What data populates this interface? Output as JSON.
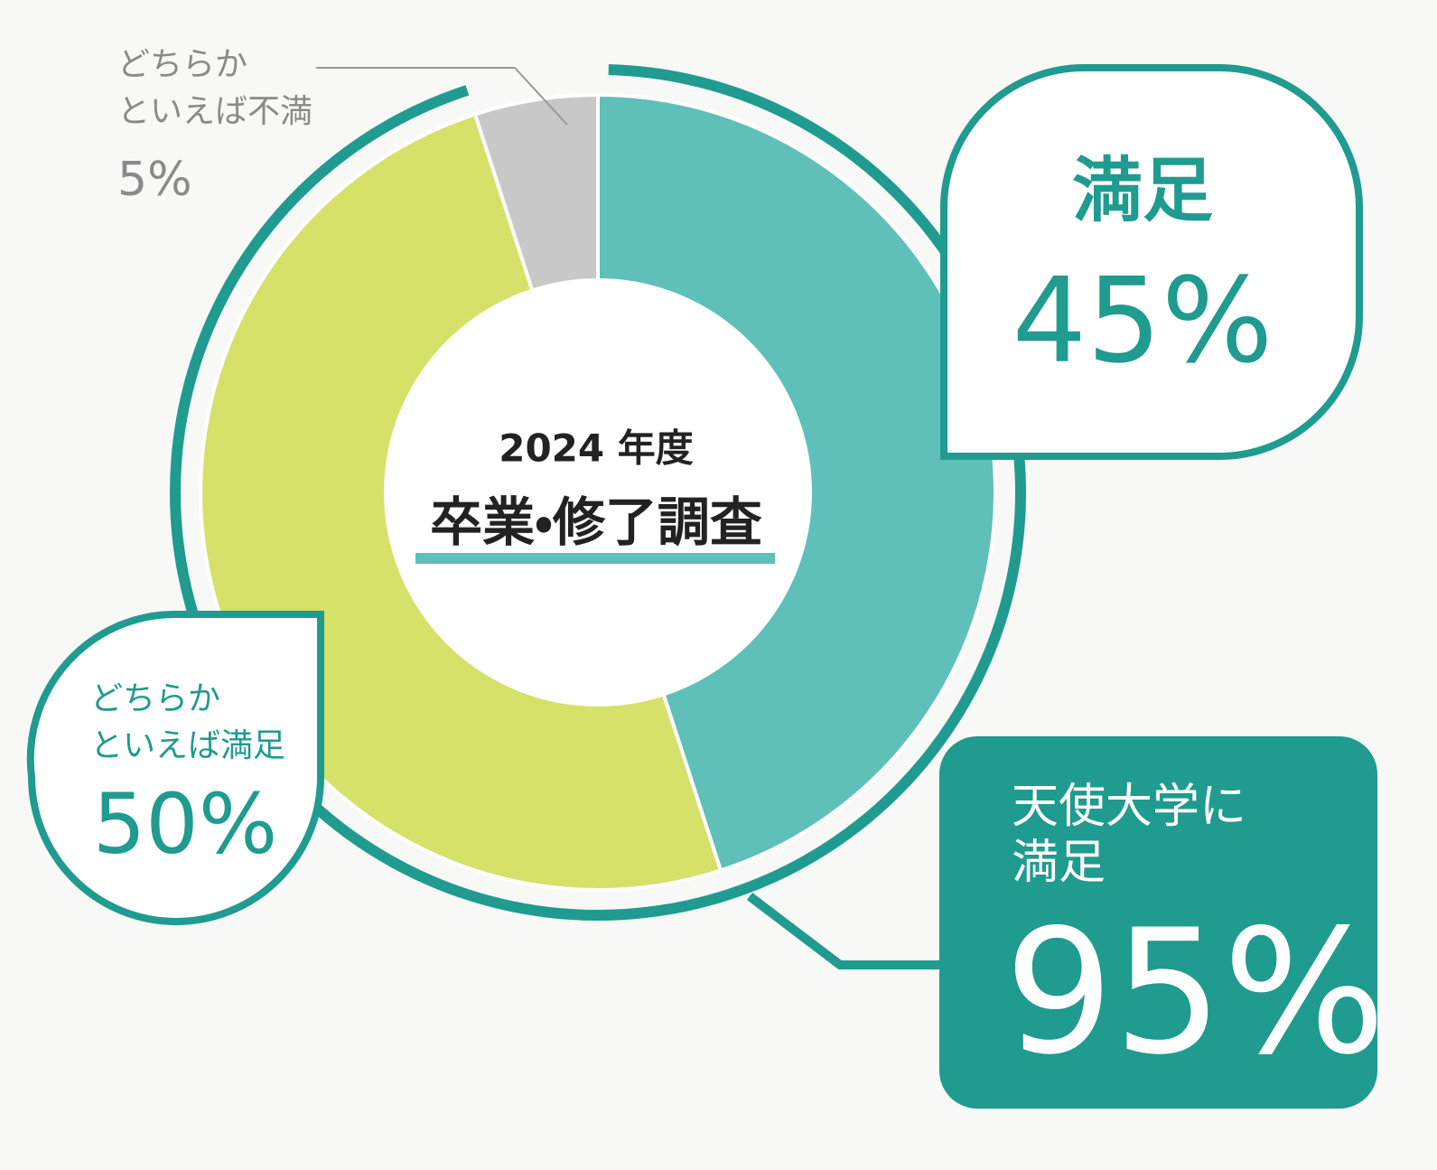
{
  "chart_data": {
    "type": "pie",
    "donut": true,
    "title": "2024 年度",
    "subtitle": "卒業・修了調査",
    "categories": [
      "満足",
      "どちらか\nといえば満足",
      "どちらか\nといえば不満"
    ],
    "values": [
      45,
      50,
      5
    ],
    "value_labels": [
      "45%",
      "50%",
      "5%"
    ],
    "colors": [
      "#5ec0b9",
      "#d5e168",
      "#c8c8c8"
    ],
    "annotation": {
      "text": "天使大学に\n満足",
      "value": 95,
      "value_label": "95%",
      "color": "#1f9b8f"
    }
  }
}
